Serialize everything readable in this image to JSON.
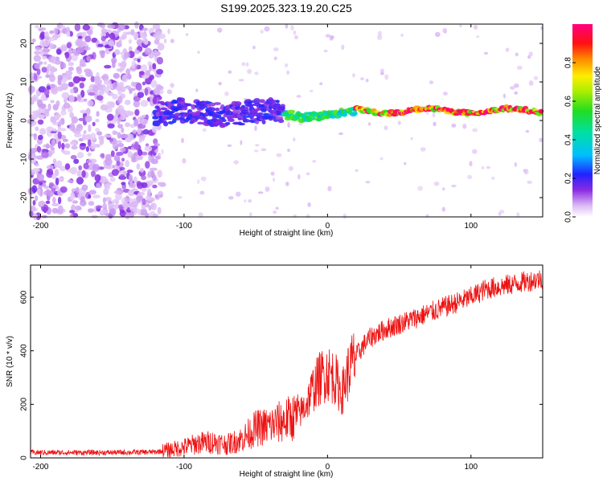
{
  "figure_title": "S199.2025.323.19.20.C25",
  "colors": {
    "axis": "#000000",
    "snr_line": "#ee1111",
    "background": "#ffffff"
  },
  "chart_data": [
    {
      "type": "heatmap",
      "xlabel": "Height of straight line (km)",
      "ylabel": "Frequency (Hz)",
      "xlim": [
        -207,
        150
      ],
      "ylim": [
        -25,
        25
      ],
      "xticks": [
        {
          "value": -200,
          "label": "-200"
        },
        {
          "value": -100,
          "label": "-100"
        },
        {
          "value": 0,
          "label": "0"
        },
        {
          "value": 100,
          "label": "100"
        }
      ],
      "yticks": [
        {
          "value": -20,
          "label": "-20"
        },
        {
          "value": -10,
          "label": "-10"
        },
        {
          "value": 0,
          "label": "0"
        },
        {
          "value": 10,
          "label": "10"
        },
        {
          "value": 20,
          "label": "20"
        }
      ],
      "colorbar": {
        "label": "Normalized spectral amplitude",
        "range": [
          0,
          1
        ],
        "ticks": [
          {
            "value": 0.0,
            "label": "0.0"
          },
          {
            "value": 0.2,
            "label": "0.2"
          },
          {
            "value": 0.4,
            "label": "0.4"
          },
          {
            "value": 0.6,
            "label": "0.6"
          },
          {
            "value": 0.8,
            "label": "0.8"
          }
        ]
      },
      "description_bands": [
        {
          "x_from": -207,
          "x_to": -120,
          "freq_center": 0,
          "freq_spread": 25,
          "amplitude": 0.05
        },
        {
          "x_from": -120,
          "x_to": -30,
          "freq_center": 2,
          "freq_spread": 6,
          "amplitude": 0.2
        },
        {
          "x_from": -30,
          "x_to": 20,
          "freq_center": 1.5,
          "freq_spread": 2,
          "amplitude": 0.5
        },
        {
          "x_from": 20,
          "x_to": 150,
          "freq_center": 2.5,
          "freq_spread": 1,
          "amplitude": 0.9
        }
      ]
    },
    {
      "type": "line",
      "xlabel": "Height of straight line (km)",
      "ylabel": "SNR (10 * v/v)",
      "xlim": [
        -207,
        150
      ],
      "ylim": [
        0,
        720
      ],
      "xticks": [
        {
          "value": -200,
          "label": "-200"
        },
        {
          "value": -100,
          "label": "-100"
        },
        {
          "value": 0,
          "label": "0"
        },
        {
          "value": 100,
          "label": "100"
        }
      ],
      "yticks": [
        {
          "value": 0,
          "label": "0"
        },
        {
          "value": 200,
          "label": "200"
        },
        {
          "value": 400,
          "label": "400"
        },
        {
          "value": 600,
          "label": "600"
        }
      ],
      "series": [
        {
          "name": "SNR",
          "x": [
            -207,
            -180,
            -150,
            -120,
            -110,
            -100,
            -90,
            -80,
            -70,
            -60,
            -50,
            -40,
            -30,
            -20,
            -15,
            -10,
            -5,
            0,
            5,
            10,
            15,
            20,
            25,
            30,
            40,
            50,
            60,
            70,
            80,
            90,
            100,
            110,
            120,
            130,
            140,
            150
          ],
          "y": [
            20,
            20,
            20,
            22,
            30,
            40,
            55,
            60,
            50,
            70,
            110,
            120,
            140,
            160,
            200,
            260,
            300,
            320,
            300,
            240,
            330,
            380,
            420,
            450,
            480,
            500,
            520,
            540,
            560,
            580,
            600,
            630,
            640,
            650,
            660,
            670
          ]
        }
      ]
    }
  ]
}
